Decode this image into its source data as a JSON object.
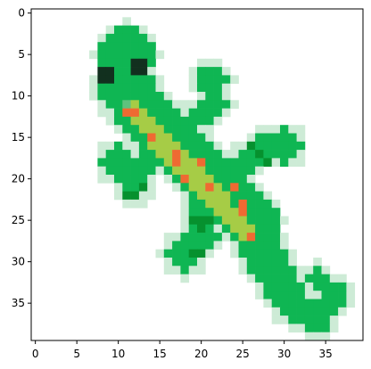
{
  "chart_data": {
    "type": "heatmap",
    "title": "",
    "xlabel": "",
    "ylabel": "",
    "xlim": [
      -0.5,
      39.5
    ],
    "ylim": [
      39.5,
      -0.5
    ],
    "x_ticks": [
      0,
      5,
      10,
      15,
      20,
      25,
      30,
      35
    ],
    "y_ticks": [
      0,
      5,
      10,
      15,
      20,
      25,
      30,
      35
    ],
    "grid": false,
    "legend": "none",
    "image_size": [
      40,
      40
    ],
    "palette": {
      "background": "#ffffff",
      "pale": "#cdebd6",
      "light": "#5ec27e",
      "green": "#0fb653",
      "dark": "#06912e",
      "yellow": "#a6cc46",
      "spot": "#ef6a32",
      "eye": "#12301f"
    },
    "regions": [
      {
        "kind": "body",
        "color": "green",
        "cells": [
          [
            4,
            13
          ],
          [
            6,
            14
          ],
          [
            8,
            14
          ],
          [
            10,
            14
          ],
          [
            12,
            12
          ],
          [
            14,
            14
          ],
          [
            16,
            16
          ],
          [
            18,
            18
          ],
          [
            20,
            20
          ],
          [
            22,
            22
          ],
          [
            24,
            23
          ],
          [
            26,
            25
          ],
          [
            28,
            26
          ],
          [
            30,
            28
          ],
          [
            32,
            29
          ],
          [
            34,
            30
          ],
          [
            36,
            33
          ]
        ]
      },
      {
        "kind": "eye",
        "color": "eye",
        "cells": [
          [
            8,
            7
          ],
          [
            9,
            7
          ],
          [
            8,
            8
          ],
          [
            9,
            8
          ],
          [
            12,
            6
          ],
          [
            13,
            6
          ],
          [
            12,
            7
          ],
          [
            13,
            7
          ]
        ]
      },
      {
        "kind": "spot",
        "color": "spot",
        "cells": [
          [
            11,
            12
          ],
          [
            12,
            12
          ],
          [
            14,
            15
          ],
          [
            17,
            17
          ],
          [
            17,
            18
          ],
          [
            20,
            18
          ],
          [
            18,
            20
          ],
          [
            21,
            21
          ],
          [
            24,
            21
          ],
          [
            25,
            23
          ],
          [
            25,
            24
          ],
          [
            26,
            27
          ]
        ]
      }
    ]
  }
}
